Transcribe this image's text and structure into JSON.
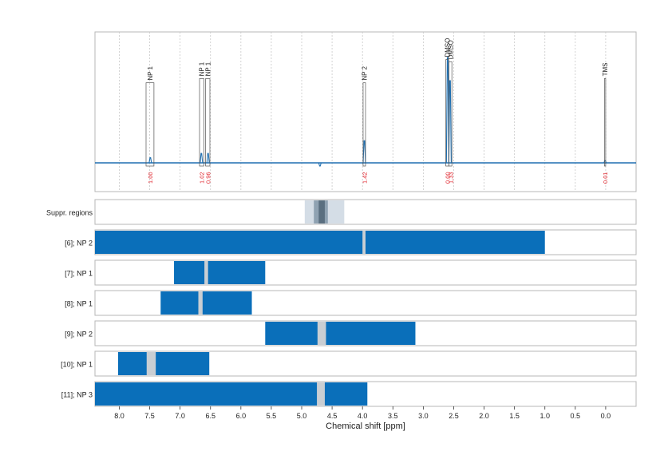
{
  "colors": {
    "spectrum": "#1f6fb0",
    "bar": "#0a6fba",
    "gap": "#c9ced3",
    "integral": "#e0242c",
    "frame": "#b7b7b7",
    "grid": "#c8c8c8",
    "suppr_light": "#d4dde6",
    "suppr_mid": "#8fa2b2",
    "suppr_dark": "#5a6f80"
  },
  "chart_data": {
    "type": "nmr-spectrum-with-bands",
    "xlabel": "Chemical shift [ppm]",
    "xlim": [
      8.4,
      -0.5
    ],
    "x_reversed": true,
    "x_ticks": [
      8.0,
      7.5,
      7.0,
      6.5,
      6.0,
      5.5,
      5.0,
      4.5,
      4.0,
      3.5,
      3.0,
      2.5,
      2.0,
      1.5,
      1.0,
      0.5,
      0.0
    ],
    "x_tick_labels": [
      "8.0",
      "7.5",
      "7.0",
      "6.5",
      "6.0",
      "5.5",
      "5.0",
      "4.5",
      "4.0",
      "3.5",
      "3.0",
      "2.5",
      "2.0",
      "1.5",
      "1.0",
      "0.5",
      "0.0"
    ],
    "grid": true,
    "spectrum_peaks": [
      {
        "ppm": 7.49,
        "height": 0.05
      },
      {
        "ppm": 6.65,
        "height": 0.09
      },
      {
        "ppm": 6.54,
        "height": 0.09
      },
      {
        "ppm": 4.7,
        "height": -0.03
      },
      {
        "ppm": 3.97,
        "height": 0.21
      },
      {
        "ppm": 2.6,
        "height": 1.0
      },
      {
        "ppm": 2.56,
        "height": 0.78
      },
      {
        "ppm": 0.01,
        "height": 0.02
      }
    ],
    "annotations": [
      {
        "label": "NP 1",
        "from": 7.56,
        "to": 7.43,
        "height": 0.76,
        "integral": "1.00"
      },
      {
        "label": "NP 1",
        "from": 6.68,
        "to": 6.61,
        "height": 0.8,
        "integral": "1.02"
      },
      {
        "label": "NP 1",
        "from": 6.58,
        "to": 6.51,
        "height": 0.8,
        "integral": "0.96"
      },
      {
        "label": "NP 2",
        "from": 3.99,
        "to": 3.95,
        "height": 0.76,
        "integral": "1.42"
      },
      {
        "label": "DMSO",
        "from": 2.63,
        "to": 2.58,
        "height": 0.98,
        "integral": "0.00"
      },
      {
        "label": "DMSO",
        "from": 2.58,
        "to": 2.53,
        "height": 0.96,
        "integral": "1.33"
      },
      {
        "label": "TMS",
        "from": 0.02,
        "to": 0.0,
        "height": 0.8,
        "integral": "0.01"
      }
    ],
    "suppression": {
      "label": "Suppr. regions",
      "regions": [
        {
          "from": 4.95,
          "to": 4.3,
          "level": "light"
        },
        {
          "from": 4.8,
          "to": 4.57,
          "level": "mid"
        },
        {
          "from": 4.72,
          "to": 4.62,
          "level": "dark"
        }
      ]
    },
    "rows": [
      {
        "label": "[6]; NP 2",
        "from": 8.4,
        "to": 1.0,
        "gaps": [
          [
            4.0,
            3.95
          ]
        ]
      },
      {
        "label": "[7]; NP 1",
        "from": 7.1,
        "to": 5.6,
        "gaps": [
          [
            6.6,
            6.54
          ]
        ]
      },
      {
        "label": "[8]; NP 1",
        "from": 7.32,
        "to": 5.82,
        "gaps": [
          [
            6.7,
            6.63
          ]
        ]
      },
      {
        "label": "[9]; NP 2",
        "from": 5.6,
        "to": 3.13,
        "gaps": [
          [
            4.74,
            4.6
          ]
        ]
      },
      {
        "label": "[10]; NP 1",
        "from": 8.02,
        "to": 6.52,
        "gaps": [
          [
            7.55,
            7.4
          ]
        ]
      },
      {
        "label": "[11]; NP 3",
        "from": 8.4,
        "to": 3.92,
        "gaps": [
          [
            4.75,
            4.62
          ]
        ]
      }
    ]
  }
}
